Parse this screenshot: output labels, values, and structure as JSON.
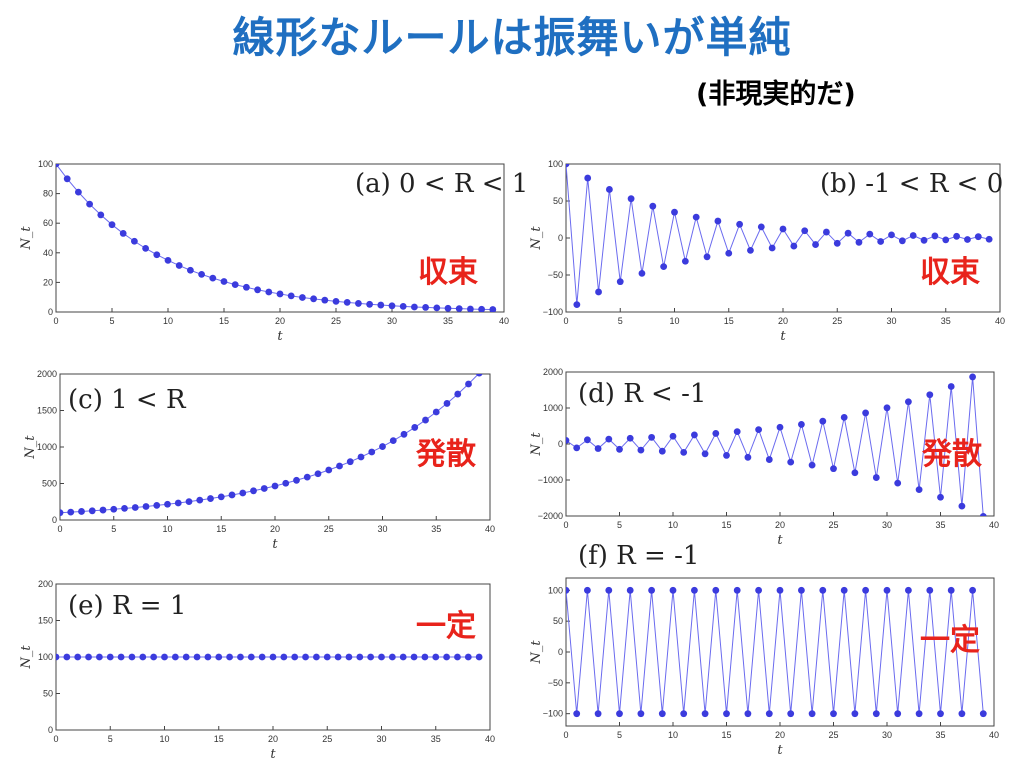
{
  "slide": {
    "title": "線形なルールは振舞いが単純",
    "subtitle": "(非現実的だ)"
  },
  "colors": {
    "title": "#1f6fc1",
    "series": "#3b3bdd",
    "tag": "#e8231b"
  },
  "chart_data": [
    {
      "id": "a",
      "type": "line",
      "annotation": "(a) 0 < R < 1",
      "tag": "収束",
      "xlabel": "t",
      "ylabel": "N_t",
      "xlim": [
        0,
        40
      ],
      "ylim": [
        0,
        100
      ],
      "xticks": [
        0,
        5,
        10,
        15,
        20,
        25,
        30,
        35,
        40
      ],
      "yticks": [
        0,
        20,
        40,
        60,
        80,
        100
      ],
      "model": {
        "N0": 100,
        "R": 0.9
      },
      "x": [
        0,
        1,
        2,
        3,
        4,
        5,
        6,
        7,
        8,
        9,
        10,
        11,
        12,
        13,
        14,
        15,
        16,
        17,
        18,
        19,
        20,
        21,
        22,
        23,
        24,
        25,
        26,
        27,
        28,
        29,
        30,
        31,
        32,
        33,
        34,
        35,
        36,
        37,
        38,
        39
      ],
      "values": [
        100,
        90,
        81,
        72.9,
        65.6,
        59,
        53.1,
        47.8,
        43,
        38.7,
        34.9,
        31.4,
        28.2,
        25.4,
        22.9,
        20.6,
        18.5,
        16.7,
        15,
        13.5,
        12.2,
        10.9,
        9.8,
        8.9,
        8,
        7.2,
        6.5,
        5.8,
        5.2,
        4.7,
        4.2,
        3.8,
        3.4,
        3.1,
        2.8,
        2.5,
        2.3,
        2,
        1.8,
        1.7
      ]
    },
    {
      "id": "b",
      "type": "line",
      "annotation": "(b) -1 < R < 0",
      "tag": "収束",
      "xlabel": "t",
      "ylabel": "N_t",
      "xlim": [
        0,
        40
      ],
      "ylim": [
        -100,
        100
      ],
      "xticks": [
        0,
        5,
        10,
        15,
        20,
        25,
        30,
        35,
        40
      ],
      "yticks": [
        -100,
        -50,
        0,
        50,
        100
      ],
      "model": {
        "N0": 100,
        "R": -0.9
      },
      "x": [
        0,
        1,
        2,
        3,
        4,
        5,
        6,
        7,
        8,
        9,
        10,
        11,
        12,
        13,
        14,
        15,
        16,
        17,
        18,
        19,
        20,
        21,
        22,
        23,
        24,
        25,
        26,
        27,
        28,
        29,
        30,
        31,
        32,
        33,
        34,
        35,
        36,
        37,
        38,
        39
      ],
      "values": [
        100,
        -90,
        81,
        -72.9,
        65.6,
        -59,
        53.1,
        -47.8,
        43,
        -38.7,
        34.9,
        -31.4,
        28.2,
        -25.4,
        22.9,
        -20.6,
        18.5,
        -16.7,
        15,
        -13.5,
        12.2,
        -10.9,
        9.8,
        -8.9,
        8,
        -7.2,
        6.5,
        -5.8,
        5.2,
        -4.7,
        4.2,
        -3.8,
        3.4,
        -3.1,
        2.8,
        -2.5,
        2.3,
        -2,
        1.8,
        -1.7
      ]
    },
    {
      "id": "c",
      "type": "line",
      "annotation": "(c) 1 < R",
      "tag": "発散",
      "xlabel": "t",
      "ylabel": "N_t",
      "xlim": [
        0,
        40
      ],
      "ylim": [
        0,
        2000
      ],
      "xticks": [
        0,
        5,
        10,
        15,
        20,
        25,
        30,
        35,
        40
      ],
      "yticks": [
        0,
        500,
        1000,
        1500,
        2000
      ],
      "model": {
        "N0": 100,
        "R": 1.08
      },
      "x": [
        0,
        1,
        2,
        3,
        4,
        5,
        6,
        7,
        8,
        9,
        10,
        11,
        12,
        13,
        14,
        15,
        16,
        17,
        18,
        19,
        20,
        21,
        22,
        23,
        24,
        25,
        26,
        27,
        28,
        29,
        30,
        31,
        32,
        33,
        34,
        35,
        36,
        37,
        38,
        39
      ],
      "values": [
        100,
        108,
        117,
        126,
        136,
        147,
        159,
        171,
        185,
        200,
        216,
        233,
        252,
        272,
        294,
        317,
        343,
        370,
        400,
        432,
        466,
        503,
        544,
        587,
        634,
        685,
        740,
        799,
        863,
        932,
        1006,
        1087,
        1174,
        1268,
        1369,
        1479,
        1597,
        1725,
        1863,
        2012
      ]
    },
    {
      "id": "d",
      "type": "line",
      "annotation": "(d) R < -1",
      "tag": "発散",
      "xlabel": "t",
      "ylabel": "N_t",
      "xlim": [
        0,
        40
      ],
      "ylim": [
        -2000,
        2000
      ],
      "xticks": [
        0,
        5,
        10,
        15,
        20,
        25,
        30,
        35,
        40
      ],
      "yticks": [
        -2000,
        -1000,
        0,
        1000,
        2000
      ],
      "model": {
        "N0": 100,
        "R": -1.08
      },
      "x": [
        0,
        1,
        2,
        3,
        4,
        5,
        6,
        7,
        8,
        9,
        10,
        11,
        12,
        13,
        14,
        15,
        16,
        17,
        18,
        19,
        20,
        21,
        22,
        23,
        24,
        25,
        26,
        27,
        28,
        29,
        30,
        31,
        32,
        33,
        34,
        35,
        36,
        37,
        38,
        39
      ],
      "values": [
        100,
        -108,
        117,
        -126,
        136,
        -147,
        159,
        -171,
        185,
        -200,
        216,
        -233,
        252,
        -272,
        294,
        -317,
        343,
        -370,
        400,
        -432,
        466,
        -503,
        544,
        -587,
        634,
        -685,
        740,
        -799,
        863,
        -932,
        1006,
        -1087,
        1174,
        -1268,
        1369,
        -1479,
        1597,
        -1725,
        1863,
        -2012
      ]
    },
    {
      "id": "e",
      "type": "line",
      "annotation": "(e) R = 1",
      "tag": "一定",
      "xlabel": "t",
      "ylabel": "N_t",
      "xlim": [
        0,
        40
      ],
      "ylim": [
        0,
        200
      ],
      "xticks": [
        0,
        5,
        10,
        15,
        20,
        25,
        30,
        35,
        40
      ],
      "yticks": [
        0,
        50,
        100,
        150,
        200
      ],
      "model": {
        "N0": 100,
        "R": 1
      },
      "x": [
        0,
        1,
        2,
        3,
        4,
        5,
        6,
        7,
        8,
        9,
        10,
        11,
        12,
        13,
        14,
        15,
        16,
        17,
        18,
        19,
        20,
        21,
        22,
        23,
        24,
        25,
        26,
        27,
        28,
        29,
        30,
        31,
        32,
        33,
        34,
        35,
        36,
        37,
        38,
        39
      ],
      "values": [
        100,
        100,
        100,
        100,
        100,
        100,
        100,
        100,
        100,
        100,
        100,
        100,
        100,
        100,
        100,
        100,
        100,
        100,
        100,
        100,
        100,
        100,
        100,
        100,
        100,
        100,
        100,
        100,
        100,
        100,
        100,
        100,
        100,
        100,
        100,
        100,
        100,
        100,
        100,
        100
      ]
    },
    {
      "id": "f",
      "type": "line",
      "annotation": "(f) R = -1",
      "tag": "一定",
      "xlabel": "t",
      "ylabel": "N_t",
      "xlim": [
        0,
        40
      ],
      "ylim": [
        -120,
        120
      ],
      "xticks": [
        0,
        5,
        10,
        15,
        20,
        25,
        30,
        35,
        40
      ],
      "yticks": [
        -100,
        -50,
        0,
        50,
        100
      ],
      "model": {
        "N0": 100,
        "R": -1
      },
      "x": [
        0,
        1,
        2,
        3,
        4,
        5,
        6,
        7,
        8,
        9,
        10,
        11,
        12,
        13,
        14,
        15,
        16,
        17,
        18,
        19,
        20,
        21,
        22,
        23,
        24,
        25,
        26,
        27,
        28,
        29,
        30,
        31,
        32,
        33,
        34,
        35,
        36,
        37,
        38,
        39
      ],
      "values": [
        100,
        -100,
        100,
        -100,
        100,
        -100,
        100,
        -100,
        100,
        -100,
        100,
        -100,
        100,
        -100,
        100,
        -100,
        100,
        -100,
        100,
        -100,
        100,
        -100,
        100,
        -100,
        100,
        -100,
        100,
        -100,
        100,
        -100,
        100,
        -100,
        100,
        -100,
        100,
        -100,
        100,
        -100,
        100,
        -100
      ]
    }
  ]
}
